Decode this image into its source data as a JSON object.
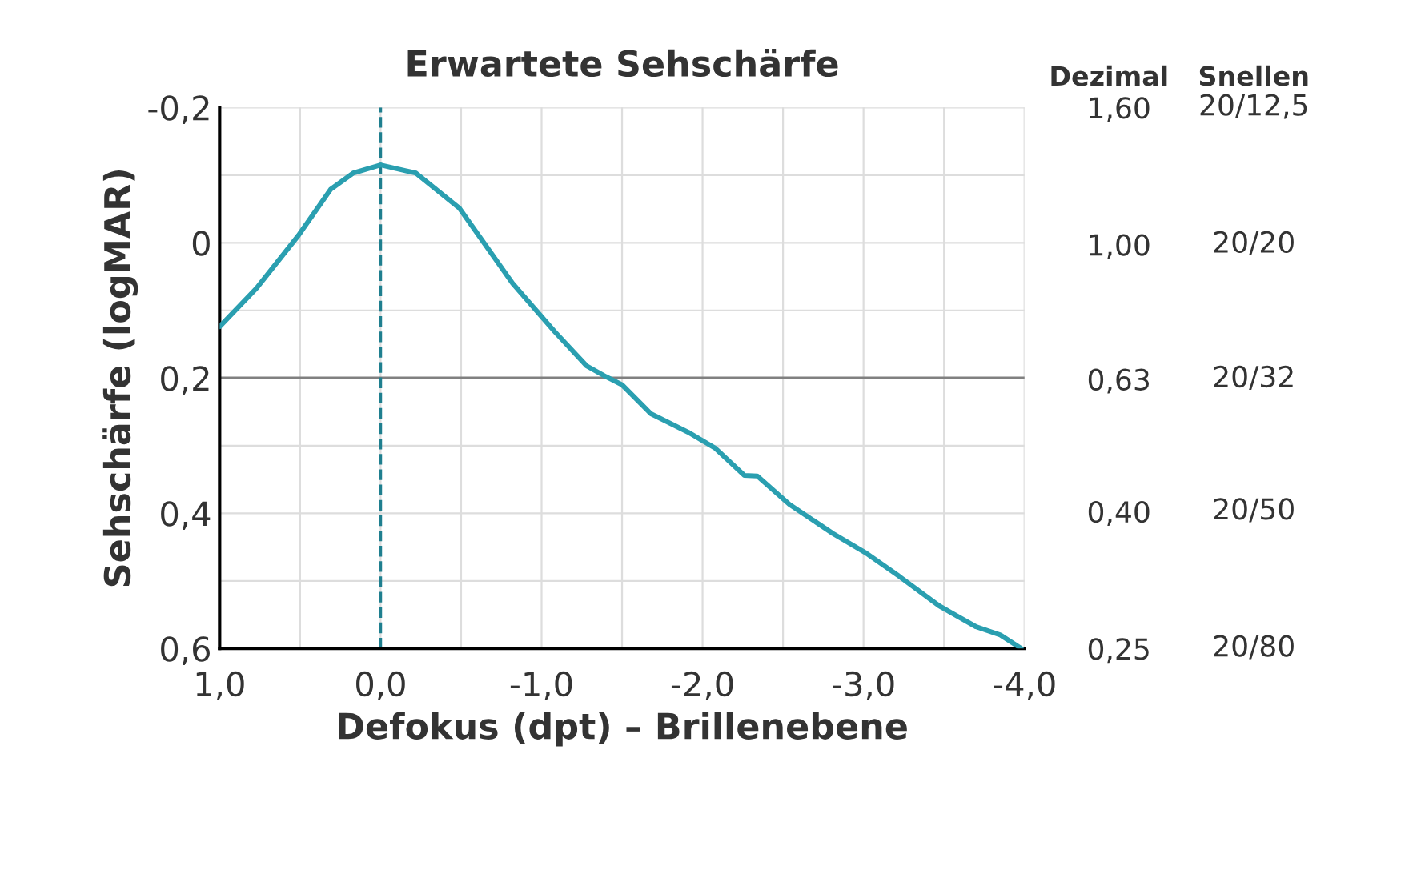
{
  "chart_data": {
    "type": "line",
    "title": "Erwartete Sehschärfe",
    "xlabel": "Defokus (dpt) – Brillenebene",
    "ylabel": "Sehschärfe (logMAR)",
    "y2label": "Dezimal",
    "x": [
      1.0,
      0.77,
      0.51,
      0.31,
      0.17,
      0.0,
      -0.22,
      -0.49,
      -0.82,
      -1.08,
      -1.28,
      -1.4,
      -1.5,
      -1.68,
      -1.91,
      -2.08,
      -2.26,
      -2.34,
      -2.54,
      -2.81,
      -3.01,
      -3.22,
      -3.47,
      -3.7,
      -3.85,
      -3.98
    ],
    "series": [
      {
        "color": "#2a9fb0",
        "values": [
          0.124,
          0.067,
          -0.011,
          -0.079,
          -0.103,
          -0.115,
          -0.103,
          -0.051,
          0.06,
          0.131,
          0.182,
          0.198,
          0.21,
          0.253,
          0.28,
          0.304,
          0.344,
          0.345,
          0.387,
          0.43,
          0.458,
          0.493,
          0.537,
          0.568,
          0.58,
          0.6
        ]
      }
    ],
    "xlim": [
      1.0,
      -4.0
    ],
    "xticks": [
      {
        "value": 1,
        "label": "1,0"
      },
      {
        "value": 0.5,
        "label": null
      },
      {
        "value": 0,
        "label": "0,0"
      },
      {
        "value": -0.5,
        "label": null
      },
      {
        "value": -1,
        "label": "-1,0"
      },
      {
        "value": -1.5,
        "label": null
      },
      {
        "value": -2,
        "label": "-2,0"
      },
      {
        "value": -2.5,
        "label": null
      },
      {
        "value": -3,
        "label": "-3,0"
      },
      {
        "value": -3.5,
        "label": null
      },
      {
        "value": -4,
        "label": "-4,0"
      }
    ],
    "ylim": [
      0.6,
      -0.2
    ],
    "yticks": [
      {
        "value": -0.2,
        "label": "-0,2"
      },
      {
        "value": -0.1,
        "label": null
      },
      {
        "value": 0,
        "label": "0"
      },
      {
        "value": 0.1,
        "label": null
      },
      {
        "value": 0.2,
        "label": "0,2"
      },
      {
        "value": 0.3,
        "label": null
      },
      {
        "value": 0.4,
        "label": "0,4"
      },
      {
        "value": 0.5,
        "label": null
      },
      {
        "value": 0.6,
        "label": "0,6"
      }
    ],
    "y2lim": [
      0.25,
      1.6
    ],
    "y2ticks": [
      {
        "value": 1.6,
        "label": "1,60"
      },
      {
        "value": 1.0,
        "label": "1,00"
      },
      {
        "value": 0.63,
        "label": "0,63"
      },
      {
        "value": 0.4,
        "label": "0,40"
      },
      {
        "value": 0.25,
        "label": "0,25"
      }
    ],
    "annotations": [
      "Snellen",
      "20/12,5",
      "20/20",
      "20/32",
      "20/50",
      "20/80"
    ],
    "log": "y2",
    "ref_lines": [
      {
        "axis": "y",
        "value": 0.2,
        "color": "#808080",
        "line_style": "solid"
      },
      {
        "axis": "x",
        "value": 0.0,
        "color": "#1f7f8f",
        "line_style": "dashed"
      }
    ],
    "grid": true,
    "marker": "none",
    "line_style": "solid"
  }
}
